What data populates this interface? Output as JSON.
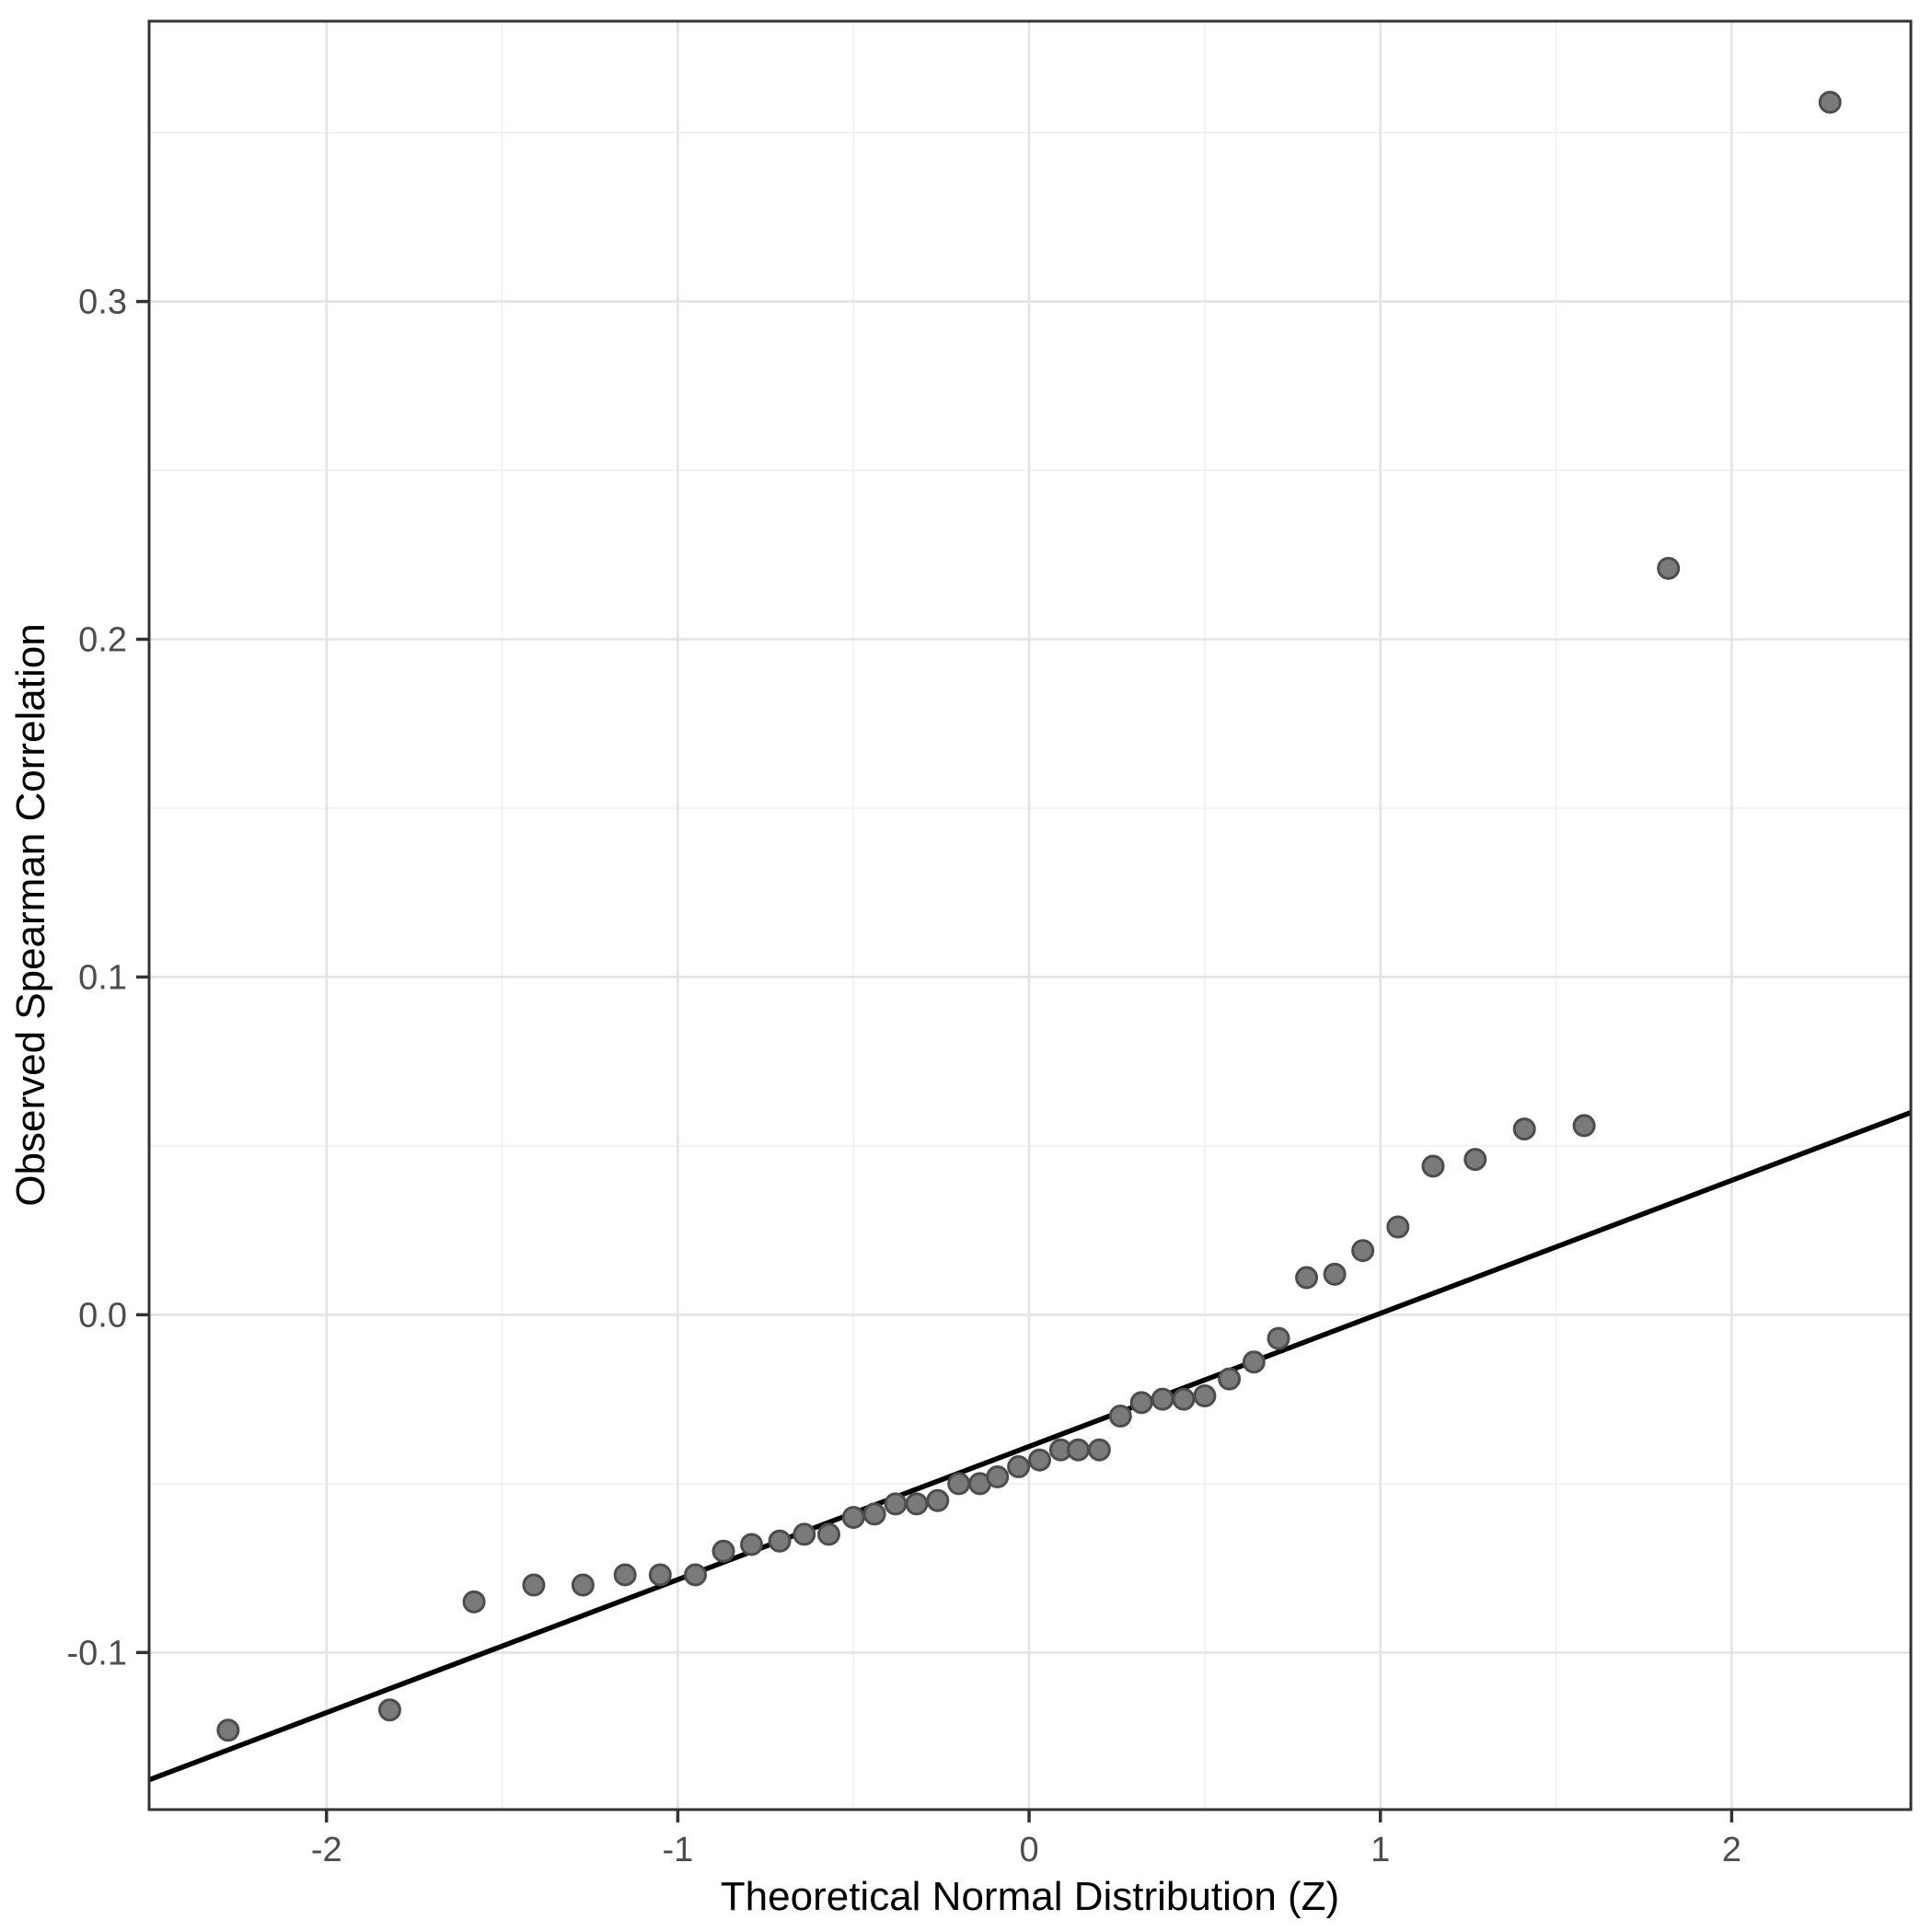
{
  "chart_data": {
    "type": "scatter",
    "title": "",
    "xlabel": "Theoretical Normal Distribution (Z)",
    "ylabel": "Observed Spearman Correlation",
    "xlim": [
      -2.505,
      2.51
    ],
    "ylim": [
      -0.1465,
      0.383
    ],
    "grid": "major+minor",
    "legend": "none",
    "x_ticks": {
      "values": [
        -2,
        -1,
        0,
        1,
        2
      ],
      "labels": [
        "-2",
        "-1",
        "0",
        "1",
        "2"
      ]
    },
    "y_ticks": {
      "values": [
        -0.1,
        0.0,
        0.1,
        0.2,
        0.3
      ],
      "labels": [
        "-0.1",
        "0.0",
        "0.1",
        "0.2",
        "0.3"
      ]
    },
    "x_minor_gridlines": [
      -1.5,
      -0.5,
      0.5,
      1.5
    ],
    "y_minor_gridlines": [
      -0.05,
      0.05,
      0.15,
      0.25,
      0.35
    ],
    "points": [
      [
        -2.28,
        -0.123
      ],
      [
        -1.82,
        -0.117
      ],
      [
        -1.58,
        -0.085
      ],
      [
        -1.41,
        -0.08
      ],
      [
        -1.27,
        -0.08
      ],
      [
        -1.15,
        -0.077
      ],
      [
        -1.05,
        -0.077
      ],
      [
        -0.95,
        -0.077
      ],
      [
        -0.87,
        -0.07
      ],
      [
        -0.79,
        -0.068
      ],
      [
        -0.71,
        -0.067
      ],
      [
        -0.64,
        -0.065
      ],
      [
        -0.57,
        -0.065
      ],
      [
        -0.5,
        -0.06
      ],
      [
        -0.44,
        -0.059
      ],
      [
        -0.38,
        -0.056
      ],
      [
        -0.32,
        -0.056
      ],
      [
        -0.26,
        -0.055
      ],
      [
        -0.2,
        -0.05
      ],
      [
        -0.14,
        -0.05
      ],
      [
        -0.09,
        -0.048
      ],
      [
        -0.03,
        -0.045
      ],
      [
        0.03,
        -0.043
      ],
      [
        0.09,
        -0.04
      ],
      [
        0.14,
        -0.04
      ],
      [
        0.2,
        -0.04
      ],
      [
        0.26,
        -0.03
      ],
      [
        0.32,
        -0.026
      ],
      [
        0.38,
        -0.025
      ],
      [
        0.44,
        -0.025
      ],
      [
        0.5,
        -0.024
      ],
      [
        0.57,
        -0.019
      ],
      [
        0.64,
        -0.014
      ],
      [
        0.71,
        -0.007
      ],
      [
        0.79,
        0.011
      ],
      [
        0.87,
        0.012
      ],
      [
        0.95,
        0.019
      ],
      [
        1.05,
        0.026
      ],
      [
        1.15,
        0.044
      ],
      [
        1.27,
        0.046
      ],
      [
        1.41,
        0.055
      ],
      [
        1.58,
        0.056
      ],
      [
        1.82,
        0.221
      ],
      [
        2.28,
        0.359
      ]
    ],
    "reference_line": {
      "slope": 0.0394,
      "intercept": -0.039
    },
    "style": {
      "background": "#ffffff",
      "panel_background": "#ffffff",
      "panel_border_color": "#333333",
      "grid_major_color": "#e4e4e4",
      "grid_minor_color": "#f0f0f0",
      "line_color": "#000000",
      "point_fill": "#7a7a7a",
      "point_stroke": "#4d4d4d",
      "tick_mark_color": "#333333",
      "tick_label_color": "#4d4d4d",
      "axis_title_color": "#000000"
    }
  }
}
